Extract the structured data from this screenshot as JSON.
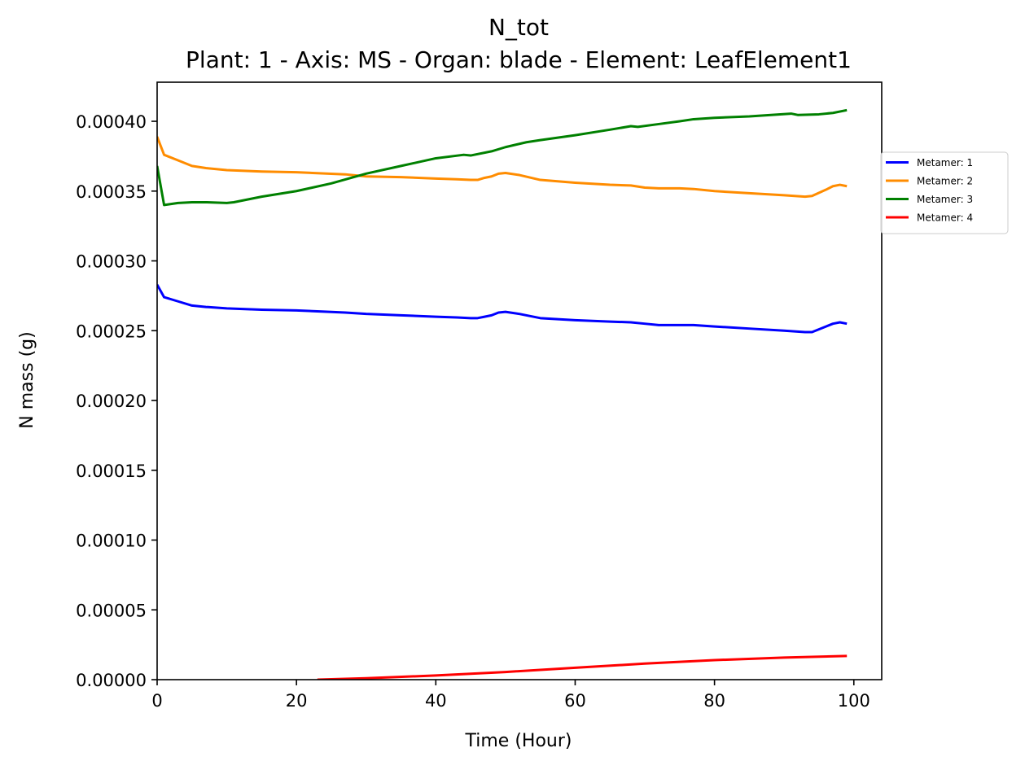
{
  "chart_data": {
    "type": "line",
    "title": "N_tot",
    "subtitle": "Plant: 1 - Axis: MS - Organ: blade - Element: LeafElement1",
    "xlabel": "Time (Hour)",
    "ylabel": "N mass (g)",
    "xlim": [
      0,
      104
    ],
    "ylim": [
      0,
      0.000428
    ],
    "xticks": [
      0,
      20,
      40,
      60,
      80,
      100
    ],
    "xtick_labels": [
      "0",
      "20",
      "40",
      "60",
      "80",
      "100"
    ],
    "yticks": [
      0,
      5e-05,
      0.0001,
      0.00015,
      0.0002,
      0.00025,
      0.0003,
      0.00035,
      0.0004
    ],
    "ytick_labels": [
      "0.00000",
      "0.00005",
      "0.00010",
      "0.00015",
      "0.00020",
      "0.00025",
      "0.00030",
      "0.00035",
      "0.00040"
    ],
    "grid": false,
    "legend_position": "right, outside plot",
    "series": [
      {
        "name": "Metamer: 1",
        "color": "#0000ff",
        "x": [
          0,
          1,
          3,
          5,
          7,
          10,
          15,
          20,
          27,
          30,
          35,
          40,
          43,
          45,
          46,
          47,
          48,
          49,
          50,
          52,
          55,
          60,
          65,
          68,
          70,
          72,
          75,
          77,
          80,
          85,
          90,
          93,
          94,
          96,
          97,
          98,
          99
        ],
        "y": [
          0.000283,
          0.000274,
          0.000271,
          0.000268,
          0.000267,
          0.000266,
          0.000265,
          0.0002645,
          0.000263,
          0.000262,
          0.000261,
          0.00026,
          0.0002595,
          0.000259,
          0.000259,
          0.00026,
          0.000261,
          0.000263,
          0.0002635,
          0.000262,
          0.000259,
          0.0002575,
          0.0002565,
          0.000256,
          0.000255,
          0.000254,
          0.000254,
          0.000254,
          0.000253,
          0.0002515,
          0.00025,
          0.000249,
          0.000249,
          0.000253,
          0.000255,
          0.000256,
          0.000255
        ]
      },
      {
        "name": "Metamer: 2",
        "color": "#ff8c00",
        "x": [
          0,
          1,
          3,
          5,
          7,
          10,
          15,
          20,
          27,
          30,
          35,
          40,
          43,
          45,
          46,
          47,
          48,
          49,
          50,
          52,
          55,
          60,
          65,
          68,
          70,
          72,
          75,
          77,
          80,
          85,
          90,
          93,
          94,
          96,
          97,
          98,
          99
        ],
        "y": [
          0.000389,
          0.000376,
          0.000372,
          0.000368,
          0.0003665,
          0.000365,
          0.000364,
          0.0003635,
          0.000362,
          0.0003605,
          0.00036,
          0.000359,
          0.0003585,
          0.000358,
          0.000358,
          0.0003595,
          0.0003605,
          0.0003625,
          0.000363,
          0.0003615,
          0.000358,
          0.000356,
          0.0003545,
          0.000354,
          0.0003525,
          0.000352,
          0.000352,
          0.0003515,
          0.00035,
          0.0003485,
          0.000347,
          0.000346,
          0.0003465,
          0.000351,
          0.0003535,
          0.0003545,
          0.0003535
        ]
      },
      {
        "name": "Metamer: 3",
        "color": "#008000",
        "x": [
          0,
          1,
          3,
          5,
          7,
          10,
          11,
          15,
          20,
          25,
          30,
          35,
          40,
          44,
          45,
          48,
          50,
          53,
          55,
          60,
          65,
          68,
          69,
          72,
          75,
          77,
          80,
          85,
          91,
          92,
          95,
          97,
          99
        ],
        "y": [
          0.000368,
          0.00034,
          0.0003415,
          0.000342,
          0.000342,
          0.0003415,
          0.000342,
          0.000346,
          0.00035,
          0.0003555,
          0.0003625,
          0.000368,
          0.0003735,
          0.000376,
          0.0003755,
          0.0003785,
          0.0003815,
          0.000385,
          0.0003865,
          0.00039,
          0.000394,
          0.0003965,
          0.000396,
          0.000398,
          0.0004,
          0.0004015,
          0.0004025,
          0.0004035,
          0.0004055,
          0.0004045,
          0.000405,
          0.000406,
          0.000408
        ]
      },
      {
        "name": "Metamer: 4",
        "color": "#ff0000",
        "x": [
          23,
          30,
          40,
          50,
          60,
          70,
          80,
          90,
          99
        ],
        "y": [
          0.0,
          1e-06,
          3e-06,
          5.5e-06,
          8.5e-06,
          1.15e-05,
          1.4e-05,
          1.58e-05,
          1.7e-05
        ]
      }
    ]
  }
}
